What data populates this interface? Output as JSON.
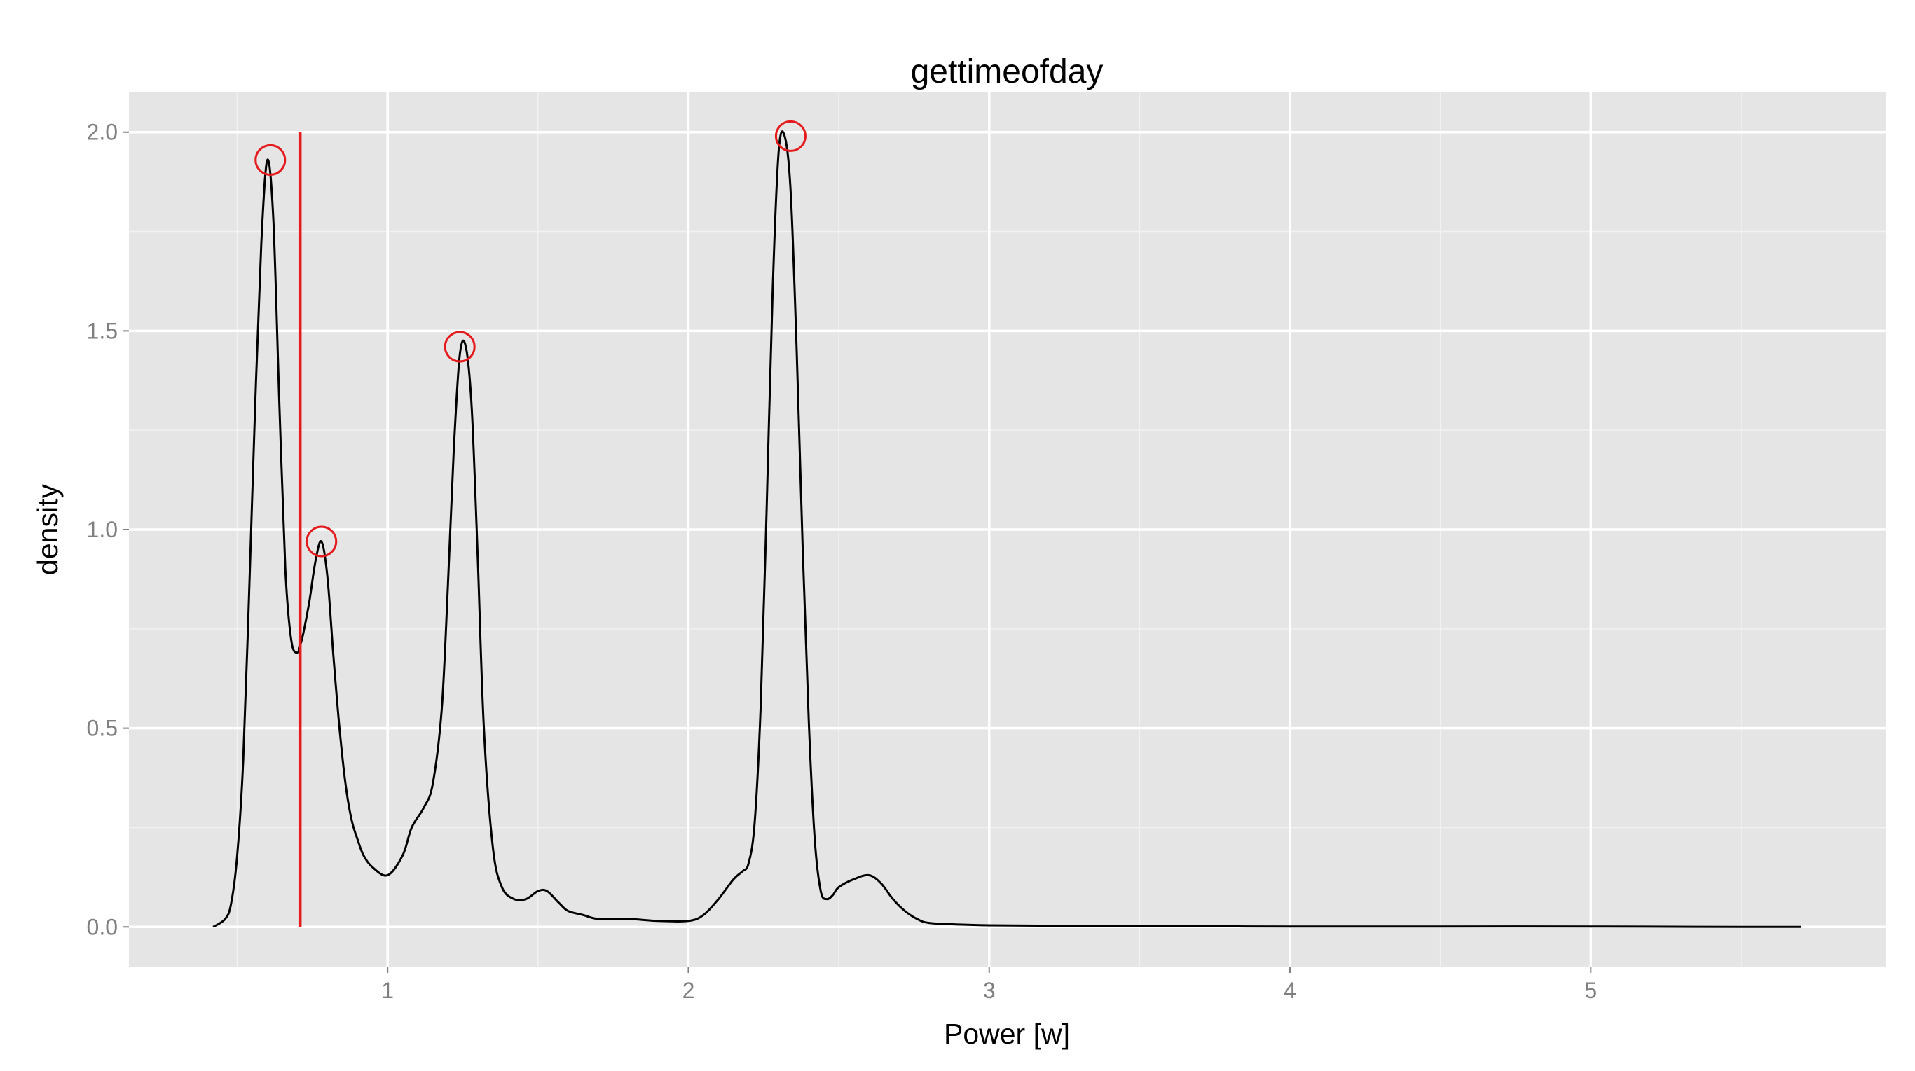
{
  "chart_data": {
    "type": "line",
    "title": "gettimeofday",
    "xlabel": "Power [w]",
    "ylabel": "density",
    "xlim": [
      0.14,
      5.98
    ],
    "ylim": [
      -0.1,
      2.1
    ],
    "x_major_ticks": [
      1,
      2,
      3,
      4,
      5
    ],
    "y_major_ticks": [
      0.0,
      0.5,
      1.0,
      1.5,
      2.0
    ],
    "x_minor_ticks": [
      0.5,
      1.5,
      2.5,
      3.5,
      4.5,
      5.5
    ],
    "y_minor_ticks": [
      0.25,
      0.75,
      1.25,
      1.75
    ],
    "x_tick_labels": [
      "1",
      "2",
      "3",
      "4",
      "5"
    ],
    "y_tick_labels": [
      "0.0",
      "0.5",
      "1.0",
      "1.5",
      "2.0"
    ],
    "grid": true,
    "legend": "none",
    "colors": {
      "panel_background": "#e5e5e5",
      "grid_major": "#ffffff",
      "grid_minor": "#f2f2f2",
      "line": "#000000",
      "highlight": "#e41a1c"
    },
    "series": [
      {
        "x": [
          0.42,
          0.46,
          0.48,
          0.5,
          0.52,
          0.54,
          0.56,
          0.58,
          0.6,
          0.62,
          0.64,
          0.66,
          0.68,
          0.7,
          0.71,
          0.72,
          0.74,
          0.76,
          0.78,
          0.8,
          0.82,
          0.84,
          0.86,
          0.88,
          0.9,
          0.92,
          0.95,
          1.0,
          1.05,
          1.08,
          1.12,
          1.15,
          1.18,
          1.2,
          1.22,
          1.24,
          1.26,
          1.28,
          1.3,
          1.32,
          1.35,
          1.38,
          1.42,
          1.46,
          1.5,
          1.53,
          1.57,
          1.6,
          1.65,
          1.7,
          1.8,
          1.9,
          2.0,
          2.05,
          2.1,
          2.15,
          2.18,
          2.2,
          2.22,
          2.24,
          2.26,
          2.28,
          2.3,
          2.32,
          2.34,
          2.36,
          2.38,
          2.4,
          2.42,
          2.44,
          2.46,
          2.48,
          2.5,
          2.55,
          2.6,
          2.64,
          2.68,
          2.72,
          2.76,
          2.8,
          2.9,
          3.0,
          3.2,
          3.5,
          4.0,
          4.5,
          5.0,
          5.5,
          5.7
        ],
        "y": [
          0.0,
          0.02,
          0.06,
          0.18,
          0.42,
          0.85,
          1.32,
          1.72,
          1.93,
          1.78,
          1.32,
          0.9,
          0.72,
          0.69,
          0.71,
          0.74,
          0.82,
          0.92,
          0.97,
          0.88,
          0.68,
          0.5,
          0.36,
          0.27,
          0.22,
          0.18,
          0.15,
          0.13,
          0.18,
          0.25,
          0.3,
          0.36,
          0.55,
          0.85,
          1.2,
          1.44,
          1.46,
          1.3,
          0.92,
          0.5,
          0.2,
          0.1,
          0.07,
          0.07,
          0.09,
          0.09,
          0.06,
          0.04,
          0.03,
          0.02,
          0.02,
          0.015,
          0.015,
          0.03,
          0.07,
          0.12,
          0.14,
          0.16,
          0.26,
          0.55,
          1.05,
          1.6,
          1.95,
          1.99,
          1.85,
          1.45,
          0.95,
          0.52,
          0.22,
          0.09,
          0.07,
          0.08,
          0.1,
          0.12,
          0.13,
          0.11,
          0.07,
          0.04,
          0.02,
          0.01,
          0.006,
          0.004,
          0.003,
          0.002,
          0.001,
          0.001,
          0.001,
          0.0,
          0.0
        ]
      }
    ],
    "peaks": [
      {
        "x": 0.61,
        "y": 1.93
      },
      {
        "x": 0.78,
        "y": 0.97
      },
      {
        "x": 1.24,
        "y": 1.46
      },
      {
        "x": 2.34,
        "y": 1.99
      }
    ],
    "vline": {
      "x": 0.71,
      "y_from": 0.0,
      "y_to": 2.0
    }
  }
}
